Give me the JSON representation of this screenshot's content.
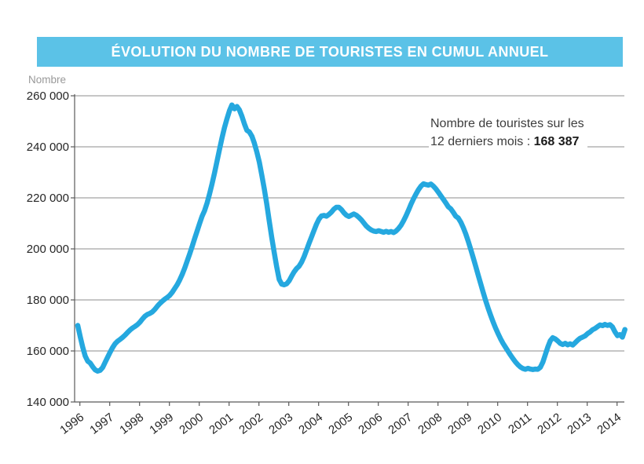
{
  "header": {
    "title": "ÉVOLUTION DU NOMBRE DE TOURISTES EN CUMUL ANNUEL",
    "bg_color": "#5BC2E7",
    "text_color": "#FFFFFF"
  },
  "annotation": {
    "line1": "Nombre de touristes sur les",
    "line2_prefix": "12 derniers mois : ",
    "value": "168 387"
  },
  "chart_data": {
    "type": "line",
    "title": "ÉVOLUTION DU NOMBRE DE TOURISTES EN CUMUL ANNUEL",
    "xlabel": "",
    "ylabel": "Nombre",
    "ylim": [
      140000,
      260000
    ],
    "y_tick_step": 20000,
    "y_tick_labels": [
      "140 000",
      "160 000",
      "180 000",
      "200 000",
      "220 000",
      "240 000",
      "260 000"
    ],
    "x_tick_labels": [
      "1996",
      "1997",
      "1998",
      "1999",
      "2000",
      "2001",
      "2002",
      "2003",
      "2004",
      "2005",
      "2006",
      "2007",
      "2008",
      "2009",
      "2010",
      "2011",
      "2012",
      "2013",
      "2014"
    ],
    "grid": "horizontal",
    "legend": "none",
    "line_color": "#25A8DF",
    "grid_color": "#8C8C8C",
    "axis_color": "#595959",
    "start_year": 1996,
    "points_per_year": 12,
    "last_point_value": 168387,
    "values": [
      170000,
      165500,
      161500,
      158000,
      156000,
      155300,
      153800,
      152600,
      152100,
      152400,
      153500,
      155500,
      157500,
      159500,
      161300,
      162800,
      163800,
      164500,
      165300,
      166200,
      167200,
      168200,
      169000,
      169600,
      170300,
      171300,
      172500,
      173600,
      174300,
      174700,
      175300,
      176300,
      177500,
      178600,
      179500,
      180300,
      181000,
      181800,
      183000,
      184500,
      186000,
      187800,
      190000,
      192500,
      195200,
      198000,
      201000,
      204000,
      207000,
      210000,
      212800,
      215000,
      218000,
      221500,
      225500,
      229800,
      234300,
      239000,
      243500,
      247500,
      251000,
      254200,
      256400,
      254900,
      255800,
      254500,
      252000,
      249000,
      246500,
      245800,
      244200,
      241500,
      238000,
      234000,
      229000,
      223500,
      217500,
      211000,
      204500,
      198500,
      193000,
      188000,
      186200,
      185900,
      186300,
      187500,
      189300,
      191000,
      192300,
      193200,
      194800,
      197000,
      199500,
      202200,
      204700,
      207200,
      209700,
      211700,
      212900,
      213100,
      212800,
      213500,
      214400,
      215600,
      216300,
      216300,
      215400,
      214200,
      213200,
      212700,
      213200,
      213700,
      213200,
      212400,
      211400,
      210200,
      209000,
      208100,
      207400,
      207000,
      206800,
      207100,
      206800,
      206500,
      206900,
      206500,
      206800,
      206400,
      207000,
      208000,
      209300,
      211000,
      213000,
      215200,
      217500,
      219600,
      221500,
      223200,
      224600,
      225500,
      225200,
      225000,
      225400,
      224600,
      223500,
      222200,
      220800,
      219400,
      218000,
      216500,
      215700,
      214300,
      212800,
      212100,
      210500,
      208400,
      205900,
      203000,
      199900,
      196600,
      193200,
      189800,
      186400,
      183000,
      179800,
      176800,
      174000,
      171400,
      169000,
      166800,
      164800,
      163000,
      161400,
      159900,
      158400,
      157000,
      155700,
      154600,
      153700,
      153100,
      152800,
      153200,
      152900,
      152700,
      152900,
      152800,
      153600,
      155600,
      158500,
      161500,
      164000,
      165200,
      164700,
      163900,
      163000,
      162500,
      163000,
      162400,
      162800,
      162300,
      163200,
      164200,
      165000,
      165400,
      165900,
      166800,
      167400,
      168300,
      168800,
      169500,
      170200,
      169900,
      170400,
      170000,
      170300,
      169400,
      167500,
      166000,
      166400,
      165400,
      168387
    ]
  }
}
